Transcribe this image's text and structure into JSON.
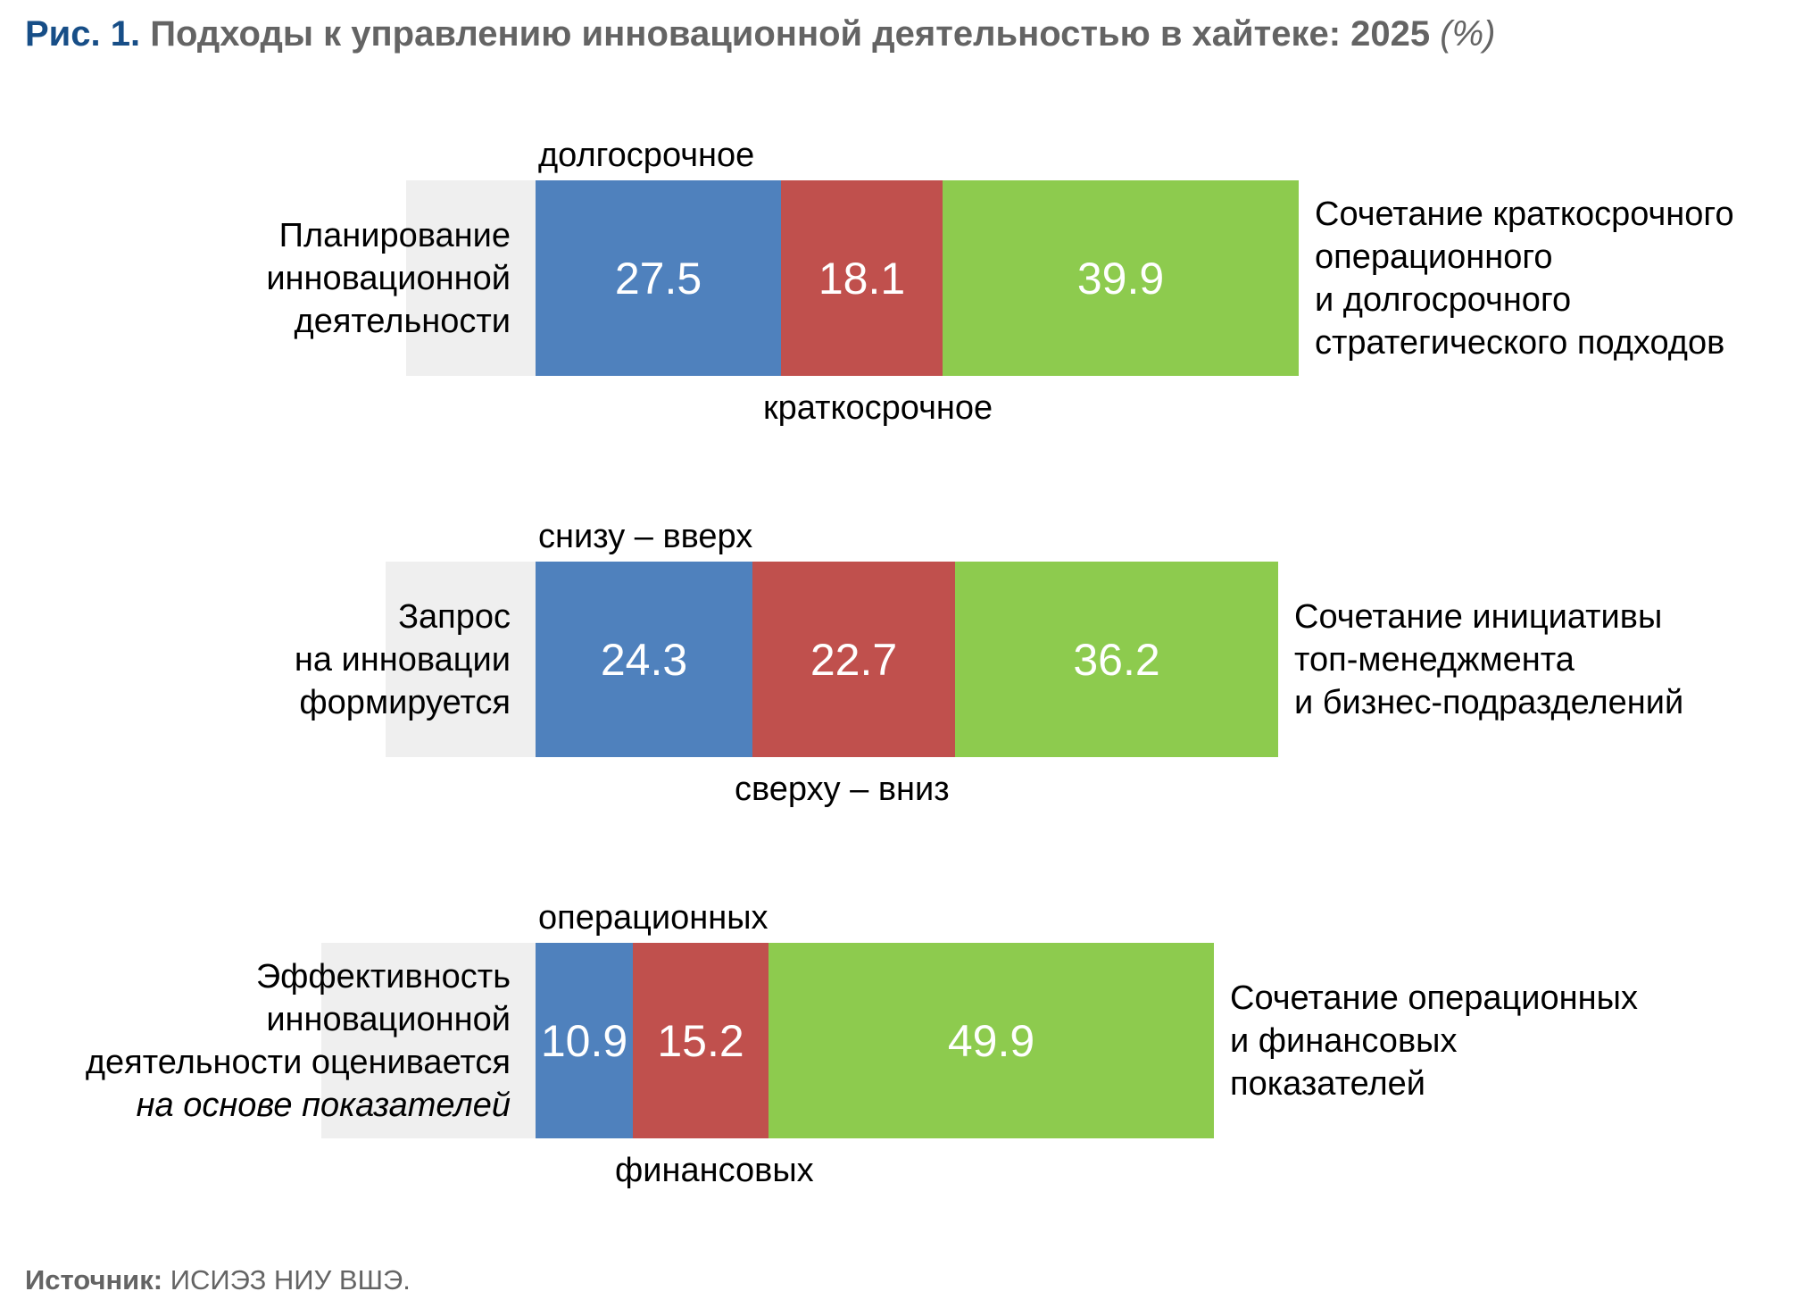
{
  "title": {
    "prefix": "Рис. 1.",
    "main": "Подходы к управлению инновационной деятельностью в хайтеке: 2025",
    "unit": "(%)"
  },
  "source": {
    "label": "Источник:",
    "text": "ИСИЭЗ НИУ ВШЭ."
  },
  "colors": {
    "accent_title": "#174E87",
    "title_gray": "#646464",
    "bar_blue": "#4F81BD",
    "bar_red": "#C0504D",
    "bar_green": "#8DCB4E",
    "bar_remainder_gray": "#EFEFEF",
    "value_text": "#FFFFFF",
    "label_text": "#000000"
  },
  "chart_data": {
    "type": "bar",
    "subtype": "horizontal-100pct-stacked",
    "unit": "%",
    "xlim": [
      0,
      100
    ],
    "grid": false,
    "legend": false,
    "title": "Подходы к управлению инновационной деятельностью в хайтеке: 2025 (%)",
    "series_colors": [
      "#4F81BD",
      "#C0504D",
      "#8DCB4E"
    ],
    "remainder_color": "#EFEFEF",
    "rows": [
      {
        "category_lines": [
          {
            "text": "Планирование",
            "italic": false
          },
          {
            "text": "инновационной",
            "italic": false
          },
          {
            "text": "деятельности",
            "italic": false
          }
        ],
        "top_label": "долгосрочное",
        "bottom_label": "краткосрочное",
        "values": [
          27.5,
          18.1,
          39.9
        ],
        "annotation_lines": [
          "Сочетание краткосрочного",
          "операционного",
          "и долгосрочного",
          "стратегического подходов"
        ]
      },
      {
        "category_lines": [
          {
            "text": "Запрос",
            "italic": false
          },
          {
            "text": "на инновации",
            "italic": false
          },
          {
            "text": "формируется",
            "italic": false
          }
        ],
        "top_label": "снизу – вверх",
        "bottom_label": "сверху – вниз",
        "values": [
          24.3,
          22.7,
          36.2
        ],
        "annotation_lines": [
          "Сочетание инициативы",
          "топ-менеджмента",
          "и бизнес-подразделений"
        ]
      },
      {
        "category_lines": [
          {
            "text": "Эффективность",
            "italic": false
          },
          {
            "text": "инновационной",
            "italic": false
          },
          {
            "text": "деятельности оценивается",
            "italic": false
          },
          {
            "text": "на основе показателей",
            "italic": true
          }
        ],
        "top_label": "операционных",
        "bottom_label": "финансовых",
        "values": [
          10.9,
          15.2,
          49.9
        ],
        "annotation_lines": [
          "Сочетание операционных",
          "и финансовых",
          "показателей"
        ]
      }
    ]
  }
}
